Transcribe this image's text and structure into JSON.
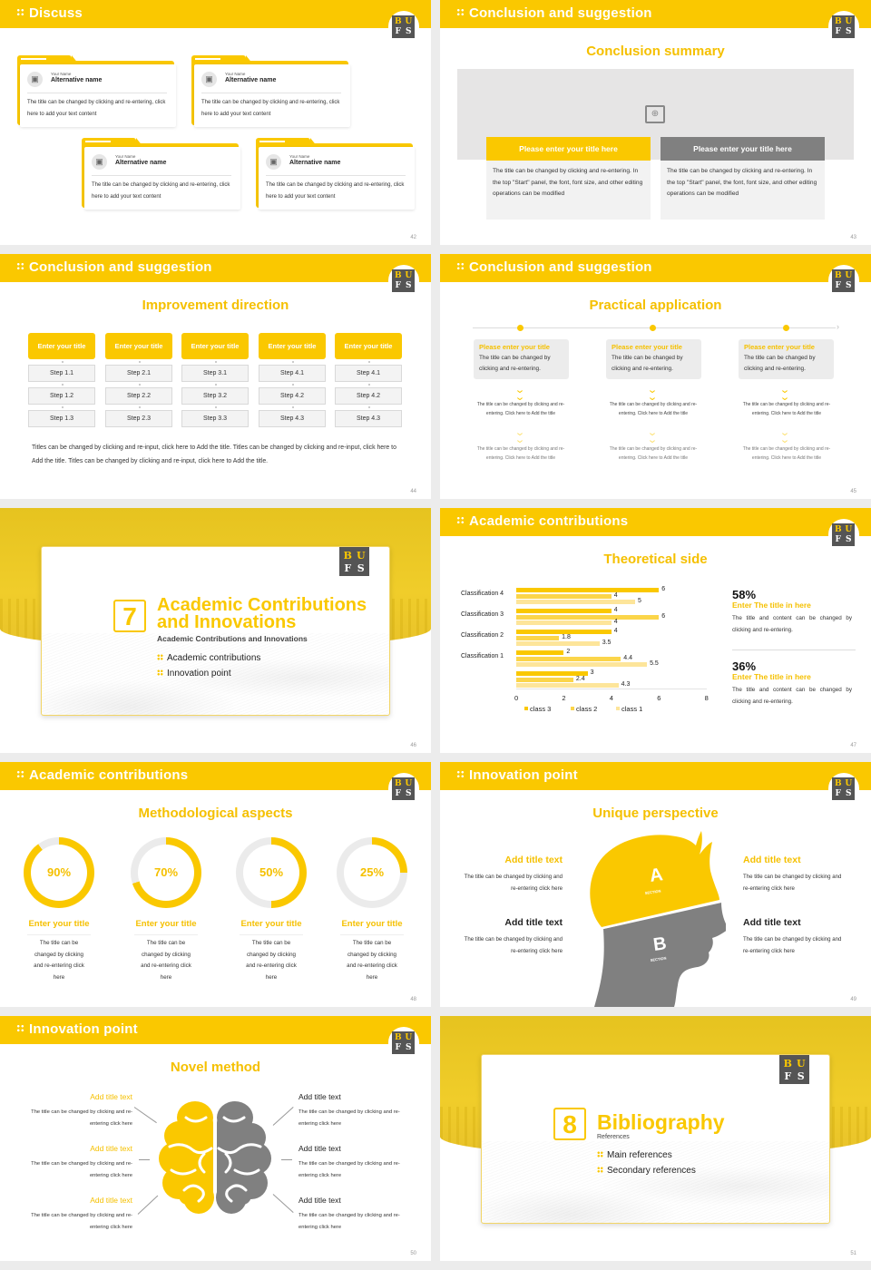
{
  "logo": {
    "letters": [
      "B",
      "U",
      "F",
      "S"
    ]
  },
  "slides": {
    "s42": {
      "header": "Discuss",
      "page": "42",
      "cards": [
        {
          "name": "Your Name",
          "alt": "Alternative name",
          "text": "The title can be changed by clicking and re-entering, click here to add your text content"
        },
        {
          "name": "Your Name",
          "alt": "Alternative name",
          "text": "The title can be changed by clicking and re-entering, click here to add your text content"
        },
        {
          "name": "Your Name",
          "alt": "Alternative name",
          "text": "The title can be changed by clicking and re-entering, click here to add your text content"
        },
        {
          "name": "Your Name",
          "alt": "Alternative name",
          "text": "The title can be changed by clicking and re-entering, click here to add your text content"
        }
      ]
    },
    "s43": {
      "header": "Conclusion and suggestion",
      "subtitle": "Conclusion summary",
      "page": "43",
      "boxes": [
        {
          "title": "Please enter your title here",
          "text": "The title can be changed by clicking and re-entering. In the top \"Start\" panel, the font, font size, and other editing operations can be modified",
          "color": "#fac800"
        },
        {
          "title": "Please enter your title here",
          "text": "The title can be changed by clicking and re-entering. In the top \"Start\" panel, the font, font size, and other editing operations can be modified",
          "color": "#808080"
        }
      ]
    },
    "s44": {
      "header": "Conclusion and suggestion",
      "subtitle": "Improvement direction",
      "page": "44",
      "columns": [
        {
          "title": "Enter your title",
          "steps": [
            "Step 1.1",
            "Step 1.2",
            "Step 1.3"
          ]
        },
        {
          "title": "Enter your title",
          "steps": [
            "Step 2.1",
            "Step 2.2",
            "Step 2.3"
          ]
        },
        {
          "title": "Enter your title",
          "steps": [
            "Step 3.1",
            "Step 3.2",
            "Step 3.3"
          ]
        },
        {
          "title": "Enter your title",
          "steps": [
            "Step 4.1",
            "Step 4.2",
            "Step 4.3"
          ]
        },
        {
          "title": "Enter your title",
          "steps": [
            "Step 4.1",
            "Step 4.2",
            "Step 4.3"
          ]
        }
      ],
      "paragraph": "Titles can be changed by clicking and re-input, click here to Add the title. Titles can be changed by clicking and re-input, click here to Add the title. Titles can be changed by clicking and re-input, click here to Add the title."
    },
    "s45": {
      "header": "Conclusion and suggestion",
      "subtitle": "Practical application",
      "page": "45",
      "items": [
        {
          "title": "Please enter your title",
          "text": "The title can be changed by clicking and re-entering.",
          "step1": "The title can be changed by clicking and re-entering. Click here to Add the title",
          "step2": "The title can be changed by clicking and re-entering. Click here to Add the title"
        },
        {
          "title": "Please enter your title",
          "text": "The title can be changed by clicking and re-entering.",
          "step1": "The title can be changed by clicking and re-entering. Click here to Add the title",
          "step2": "The title can be changed by clicking and re-entering. Click here to Add the title"
        },
        {
          "title": "Please enter your title",
          "text": "The title can be changed by clicking and re-entering.",
          "step1": "The title can be changed by clicking and re-entering. Click here to Add the title",
          "step2": "The title can be changed by clicking and re-entering. Click here to Add the title"
        }
      ]
    },
    "s46": {
      "number": "7",
      "title_line1": "Academic Contributions",
      "title_line2": "and Innovations",
      "small": "Academic Contributions and Innovations",
      "bullets": [
        "Academic contributions",
        "Innovation point"
      ],
      "page": "46"
    },
    "s47": {
      "header": "Academic contributions",
      "subtitle": "Theoretical side",
      "page": "47",
      "stats": [
        {
          "percent": "58%",
          "title": "Enter The title in here",
          "text": "The title and content can be changed by clicking and re-entering."
        },
        {
          "percent": "36%",
          "title": "Enter The title in here",
          "text": "The title and content can be changed by clicking and re-entering."
        }
      ]
    },
    "s48": {
      "header": "Academic contributions",
      "subtitle": "Methodological aspects",
      "page": "48",
      "donuts": [
        {
          "value": "90%",
          "pct": 90,
          "title": "Enter your title",
          "text": "The title can be changed by clicking and re-entering click here"
        },
        {
          "value": "70%",
          "pct": 70,
          "title": "Enter your title",
          "text": "The title can be changed by clicking and re-entering click here"
        },
        {
          "value": "50%",
          "pct": 50,
          "title": "Enter your title",
          "text": "The title can be changed by clicking and re-entering click here"
        },
        {
          "value": "25%",
          "pct": 25,
          "title": "Enter your title",
          "text": "The title can be changed by clicking and re-entering click here"
        }
      ]
    },
    "s49": {
      "header": "Innovation point",
      "subtitle": "Unique perspective",
      "page": "49",
      "labelA": "A",
      "labelB": "B",
      "section": "SECTION",
      "items": [
        {
          "title": "Add title text",
          "text": "The title can be changed by clicking and re-entering click here"
        },
        {
          "title": "Add title text",
          "text": "The title can be changed by clicking and re-entering click here"
        },
        {
          "title": "Add title text",
          "text": "The title can be changed by clicking and re-entering click here"
        },
        {
          "title": "Add title text",
          "text": "The title can be changed by clicking and re-entering click here"
        }
      ]
    },
    "s50": {
      "header": "Innovation point",
      "subtitle": "Novel method",
      "page": "50",
      "items": [
        {
          "title": "Add title text",
          "text": "The title can be changed by clicking and re-entering click here"
        },
        {
          "title": "Add title text",
          "text": "The title can be changed by clicking and re-entering click here"
        },
        {
          "title": "Add title text",
          "text": "The title can be changed by clicking and re-entering click here"
        },
        {
          "title": "Add title text",
          "text": "The title can be changed by clicking and re-entering click here"
        },
        {
          "title": "Add title text",
          "text": "The title can be changed by clicking and re-entering click here"
        },
        {
          "title": "Add title text",
          "text": "The title can be changed by clicking and re-entering click here"
        }
      ]
    },
    "s51": {
      "number": "8",
      "title": "Bibliography",
      "small": "References",
      "bullets": [
        "Main references",
        "Secondary references"
      ],
      "page": "51"
    }
  },
  "chart_data": {
    "type": "bar",
    "orientation": "horizontal",
    "title": "Theoretical side",
    "categories": [
      "",
      "Classification 1",
      "Classification 2",
      "Classification 3",
      "Classification 4"
    ],
    "series": [
      {
        "name": "class 3",
        "color": "#fac800",
        "values": [
          3,
          2,
          4,
          4,
          6
        ]
      },
      {
        "name": "class 2",
        "color": "#fbd54a",
        "values": [
          2.4,
          4.4,
          1.8,
          6,
          4
        ]
      },
      {
        "name": "class 1",
        "color": "#fde59a",
        "values": [
          4.3,
          5.5,
          3.5,
          4,
          5
        ]
      }
    ],
    "xlim": [
      0,
      8
    ],
    "xticks": [
      "0",
      "2",
      "4",
      "6",
      "8"
    ],
    "legend_position": "bottom",
    "grid": false
  },
  "colors": {
    "accent": "#fac800",
    "grey": "#808080",
    "background": "#ececec"
  }
}
